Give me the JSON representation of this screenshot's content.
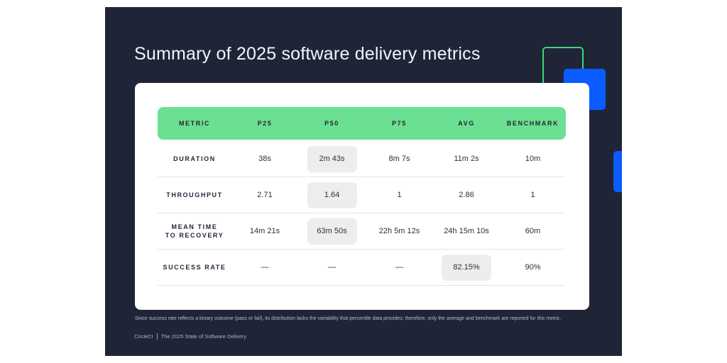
{
  "title": "Summary of 2025 software delivery metrics",
  "table": {
    "headers": [
      "METRIC",
      "P25",
      "P50",
      "P75",
      "AVG",
      "BENCHMARK"
    ],
    "rows": [
      {
        "metric": "DURATION",
        "values": [
          "38s",
          "2m 43s",
          "8m 7s",
          "11m 2s",
          "10m"
        ],
        "highlight_index": 1
      },
      {
        "metric": "THROUGHPUT",
        "values": [
          "2.71",
          "1.64",
          "1",
          "2.86",
          "1"
        ],
        "highlight_index": 1
      },
      {
        "metric": "MEAN TIME TO RECOVERY",
        "metric_line1": "MEAN TIME",
        "metric_line2": "TO RECOVERY",
        "values": [
          "14m 21s",
          "63m 50s",
          "22h 5m 12s",
          "24h 15m 10s",
          "60m"
        ],
        "highlight_index": 1
      },
      {
        "metric": "SUCCESS RATE",
        "values": [
          "—",
          "—",
          "—",
          "82.15%",
          "90%"
        ],
        "highlight_index": 3
      }
    ]
  },
  "footnote": "Since success rate reflects a binary outcome (pass or fail), its distribution lacks the variability that percentile data provides; therefore, only the average and benchmark are reported for this metric.",
  "footer": {
    "brand": "CircleCI",
    "report": "The 2025 State of Software Delivery"
  },
  "colors": {
    "background": "#1f2537",
    "header_green": "#6ce092",
    "accent_blue": "#0a5cff",
    "outline_green": "#3bd778",
    "highlight_gray": "#ededed"
  }
}
